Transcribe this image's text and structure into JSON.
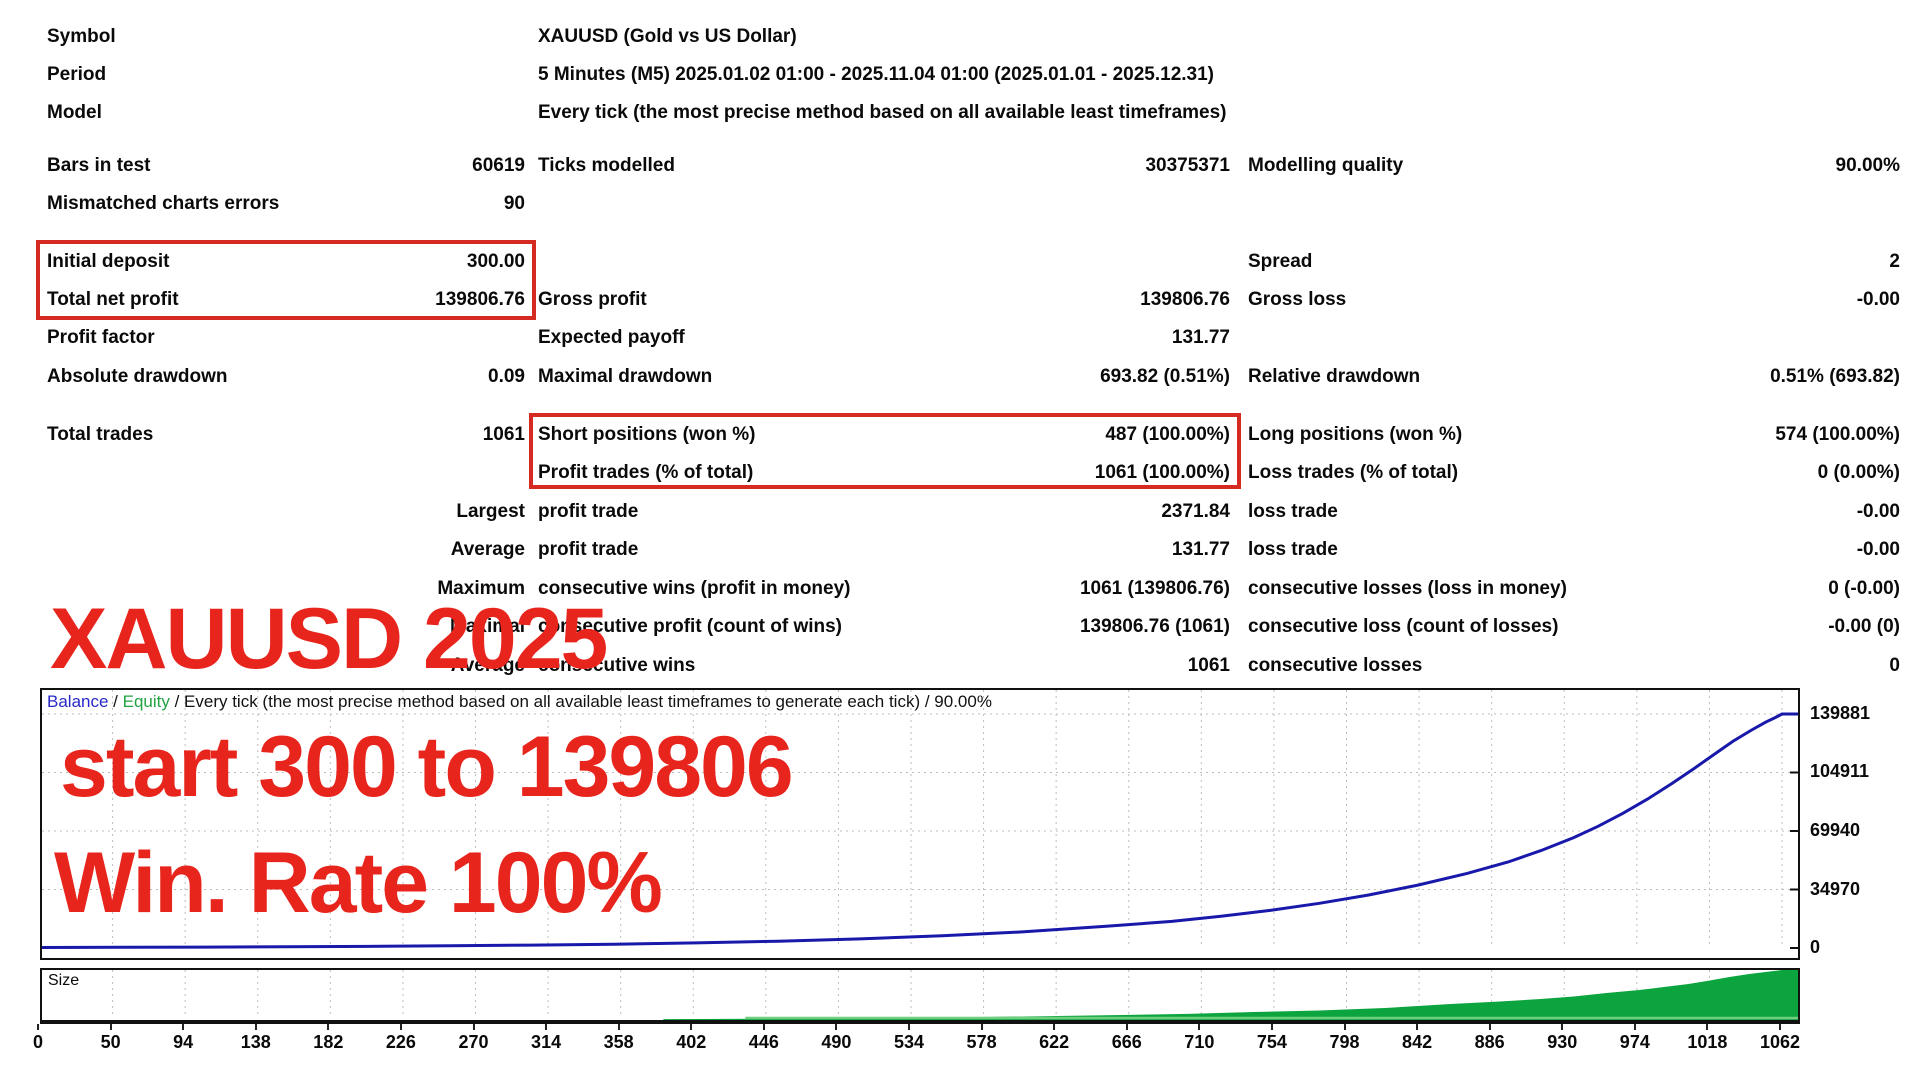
{
  "accent": {
    "box_red": "#d42a22",
    "text_red": "#e8251d",
    "balance_blue": "#1818aa",
    "equity_green": "#22a344",
    "size_green": "#0ba43e"
  },
  "header": {
    "rows": [
      {
        "label": "Symbol",
        "value": "XAUUSD (Gold vs US Dollar)"
      },
      {
        "label": "Period",
        "value": "5 Minutes (M5) 2025.01.02 01:00 - 2025.11.04 01:00 (2025.01.01 - 2025.12.31)"
      },
      {
        "label": "Model",
        "value": "Every tick (the most precise method based on all available least timeframes)"
      }
    ]
  },
  "stats": {
    "rows": [
      {
        "l1": "Bars in test",
        "v1": "60619",
        "l2": "Ticks modelled",
        "v2": "30375371",
        "l3": "Modelling quality",
        "v3": "90.00%"
      },
      {
        "l1": "Mismatched charts errors",
        "v1": "90",
        "l2": "",
        "v2": "",
        "l3": "",
        "v3": ""
      },
      {
        "l1": "Initial deposit",
        "v1": "300.00",
        "l2": "",
        "v2": "",
        "l3": "Spread",
        "v3": "2"
      },
      {
        "l1": "Total net profit",
        "v1": "139806.76",
        "l2": "Gross profit",
        "v2": "139806.76",
        "l3": "Gross loss",
        "v3": "-0.00"
      },
      {
        "l1": "Profit factor",
        "v1": "",
        "l2": "Expected payoff",
        "v2": "131.77",
        "l3": "",
        "v3": ""
      },
      {
        "l1": "Absolute drawdown",
        "v1": "0.09",
        "l2": "Maximal drawdown",
        "v2": "693.82 (0.51%)",
        "l3": "Relative drawdown",
        "v3": "0.51% (693.82)"
      },
      {
        "l1": "Total trades",
        "v1": "1061",
        "l2": "Short positions (won %)",
        "v2": "487 (100.00%)",
        "l3": "Long positions (won %)",
        "v3": "574 (100.00%)"
      },
      {
        "l1": "",
        "v1": "",
        "l2": "Profit trades (% of total)",
        "v2": "1061 (100.00%)",
        "l3": "Loss trades (% of total)",
        "v3": "0 (0.00%)"
      },
      {
        "l1": "",
        "v1": "Largest",
        "l2": "profit trade",
        "v2": "2371.84",
        "l3": "loss trade",
        "v3": "-0.00"
      },
      {
        "l1": "",
        "v1": "Average",
        "l2": "profit trade",
        "v2": "131.77",
        "l3": "loss trade",
        "v3": "-0.00"
      },
      {
        "l1": "",
        "v1": "Maximum",
        "l2": "consecutive wins (profit in money)",
        "v2": "1061 (139806.76)",
        "l3": "consecutive losses (loss in money)",
        "v3": "0 (-0.00)"
      },
      {
        "l1": "",
        "v1": "Maximal",
        "l2": "consecutive profit (count of wins)",
        "v2": "139806.76 (1061)",
        "l3": "consecutive loss (count of losses)",
        "v3": "-0.00 (0)"
      },
      {
        "l1": "",
        "v1": "Average",
        "l2": "consecutive wins",
        "v2": "1061",
        "l3": "consecutive losses",
        "v3": "0"
      }
    ]
  },
  "overlay": {
    "line1": "XAUUSD 2025",
    "line2": "start 300 to 139806",
    "line3": "Win. Rate 100%"
  },
  "chart_data": [
    {
      "type": "line",
      "name": "balance-curve",
      "legend": {
        "balance": "Balance",
        "sep1": " / ",
        "equity": "Equity",
        "sep2": " / ",
        "model": "Every tick (the most precise method based on all available least timeframes to generate each tick)",
        "sep3": " / ",
        "quality": "90.00%"
      },
      "y_axis_labels": [
        "139881",
        "104911",
        "69940",
        "34970",
        "0"
      ],
      "y_max": 139881,
      "x_max": 1062,
      "x_tick_labels": [
        "0",
        "50",
        "94",
        "138",
        "182",
        "226",
        "270",
        "314",
        "358",
        "402",
        "446",
        "490",
        "534",
        "578",
        "622",
        "666",
        "710",
        "754",
        "798",
        "842",
        "886",
        "930",
        "974",
        "1018",
        "1062"
      ],
      "grid": true,
      "series": [
        {
          "name": "Balance",
          "color": "#1818aa",
          "points": [
            [
              0,
              300
            ],
            [
              50,
              400
            ],
            [
              100,
              545
            ],
            [
              150,
              725
            ],
            [
              200,
              965
            ],
            [
              250,
              1290
            ],
            [
              300,
              1720
            ],
            [
              350,
              2290
            ],
            [
              400,
              3060
            ],
            [
              450,
              4080
            ],
            [
              500,
              5450
            ],
            [
              550,
              7270
            ],
            [
              600,
              9700
            ],
            [
              650,
              12950
            ],
            [
              690,
              15900
            ],
            [
              720,
              19000
            ],
            [
              750,
              22500
            ],
            [
              780,
              26700
            ],
            [
              810,
              31700
            ],
            [
              840,
              37600
            ],
            [
              870,
              44600
            ],
            [
              895,
              51400
            ],
            [
              915,
              58200
            ],
            [
              935,
              66000
            ],
            [
              950,
              72800
            ],
            [
              965,
              80500
            ],
            [
              980,
              89000
            ],
            [
              995,
              98400
            ],
            [
              1008,
              107000
            ],
            [
              1020,
              115300
            ],
            [
              1032,
              123500
            ],
            [
              1043,
              130000
            ],
            [
              1052,
              135000
            ],
            [
              1058,
              137800
            ],
            [
              1062,
              139881
            ]
          ]
        }
      ]
    },
    {
      "type": "area",
      "name": "size-panel",
      "label": "Size",
      "color": "#0ba43e",
      "underline_color": "#6fcf7f",
      "y_norm_max": 1,
      "points": [
        [
          0,
          0
        ],
        [
          380,
          0.018
        ],
        [
          420,
          0.023
        ],
        [
          460,
          0.03
        ],
        [
          500,
          0.039
        ],
        [
          540,
          0.049
        ],
        [
          580,
          0.062
        ],
        [
          620,
          0.08
        ],
        [
          660,
          0.1
        ],
        [
          700,
          0.123
        ],
        [
          740,
          0.16
        ],
        [
          780,
          0.19
        ],
        [
          820,
          0.24
        ],
        [
          860,
          0.32
        ],
        [
          890,
          0.37
        ],
        [
          915,
          0.42
        ],
        [
          935,
          0.47
        ],
        [
          955,
          0.54
        ],
        [
          975,
          0.6
        ],
        [
          990,
          0.66
        ],
        [
          1005,
          0.72
        ],
        [
          1018,
          0.79
        ],
        [
          1030,
          0.86
        ],
        [
          1042,
          0.92
        ],
        [
          1052,
          0.96
        ],
        [
          1062,
          1.0
        ]
      ]
    }
  ]
}
